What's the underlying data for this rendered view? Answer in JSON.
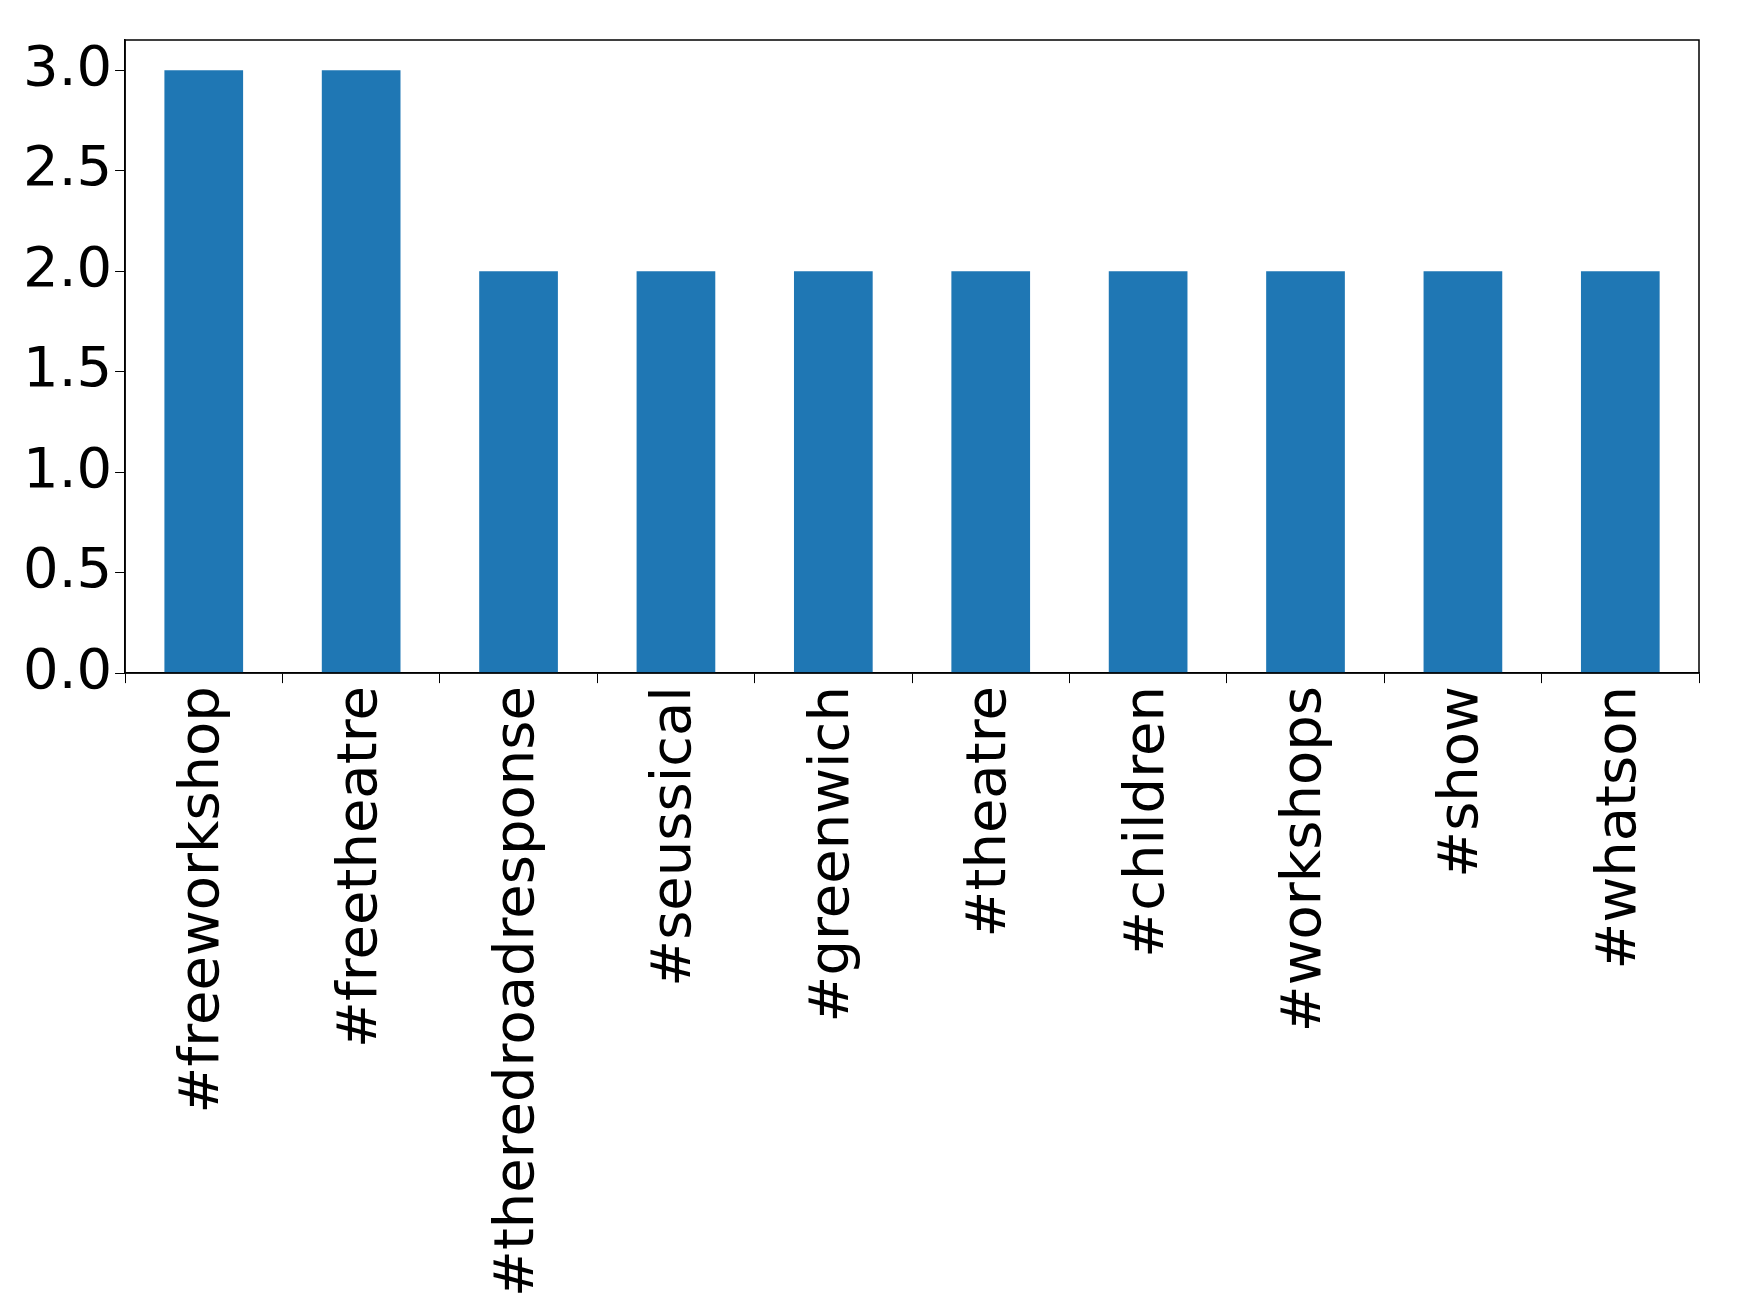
{
  "chart_data": {
    "type": "bar",
    "categories": [
      "#freeworkshop",
      "#freetheatre",
      "#theredroadresponse",
      "#seussical",
      "#greenwich",
      "#theatre",
      "#children",
      "#workshops",
      "#show",
      "#whatson"
    ],
    "values": [
      3,
      3,
      2,
      2,
      2,
      2,
      2,
      2,
      2,
      2
    ],
    "color": "#1f77b4",
    "ylim": [
      0,
      3.15
    ],
    "yticks": [
      {
        "value": 0,
        "label": "0.0"
      },
      {
        "value": 0.5,
        "label": "0.5"
      },
      {
        "value": 1,
        "label": "1.0"
      },
      {
        "value": 1.5,
        "label": "1.5"
      },
      {
        "value": 2,
        "label": "2.0"
      },
      {
        "value": 2.5,
        "label": "2.5"
      },
      {
        "value": 3,
        "label": "3.0"
      }
    ],
    "grid": false,
    "legend": false
  }
}
